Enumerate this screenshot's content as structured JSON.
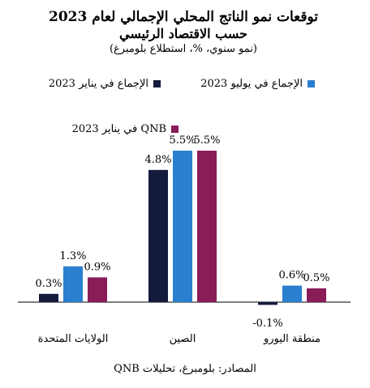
{
  "chart_data": {
    "type": "bar",
    "title": "توقعات نمو الناتج المحلي الإجمالي لعام 2023",
    "title_line2": "حسب الاقتصاد الرئيسي",
    "subtitle": "(نمو سنوي، %، استطلاع بلومبرغ)",
    "categories": [
      "الولايات المتحدة",
      "الصين",
      "منطقة اليورو"
    ],
    "series": [
      {
        "name": "الإجماع في يناير 2023",
        "values": [
          0.3,
          4.8,
          -0.1
        ],
        "labels": [
          "0.3%",
          "4.8%",
          "-0.1%"
        ],
        "color": "#141a3c"
      },
      {
        "name": "الإجماع في يوليو 2023",
        "values": [
          1.3,
          5.5,
          0.6
        ],
        "labels": [
          "1.3%",
          "5.5%",
          "0.6%"
        ],
        "color": "#2a7fcf"
      },
      {
        "name": "QNB في يناير 2023",
        "values": [
          0.9,
          5.5,
          0.5
        ],
        "labels": [
          "0.9%",
          "5.5%",
          "0.5%"
        ],
        "color": "#8a1c58"
      }
    ],
    "ylim": [
      -0.6,
      6.0
    ],
    "grid": false,
    "legend_position": "top"
  },
  "source": "المصادر: بلومبرغ، تحليلات QNB"
}
